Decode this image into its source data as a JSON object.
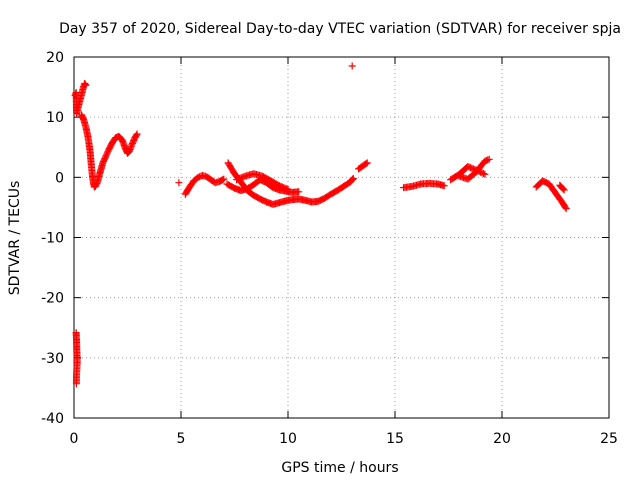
{
  "chart_data": {
    "type": "scatter",
    "title": "Day 357 of 2020, Sidereal Day-to-day VTEC variation (SDTVAR) for receiver spja",
    "xlabel": "GPS time / hours",
    "ylabel": "SDTVAR / TECUs",
    "xlim": [
      0,
      25
    ],
    "ylim": [
      -40,
      20
    ],
    "xticks": [
      0,
      5,
      10,
      15,
      20,
      25
    ],
    "yticks": [
      -40,
      -30,
      -20,
      -10,
      0,
      10,
      20
    ],
    "xtick_labels": [
      "0",
      "5",
      "10",
      "15",
      "20",
      "25"
    ],
    "ytick_labels": [
      "-40",
      "-30",
      "-20",
      "-10",
      "0",
      "10",
      "20"
    ],
    "grid": true,
    "marker": "+",
    "series": [
      {
        "name": "SDTVAR",
        "color": "#ff0000",
        "segments": [
          [
            [
              0.05,
              13.6
            ],
            [
              0.1,
              14.1
            ],
            [
              0.12,
              10.6
            ],
            [
              0.45,
              15.1
            ],
            [
              0.5,
              15.6
            ],
            [
              0.55,
              15.3
            ]
          ],
          [
            [
              0.1,
              -25.8
            ],
            [
              0.12,
              -27.2
            ],
            [
              0.13,
              -28.6
            ],
            [
              0.14,
              -29.6
            ],
            [
              0.15,
              -30.8
            ],
            [
              0.12,
              -32.8
            ],
            [
              0.11,
              -34.3
            ]
          ],
          [
            [
              0.35,
              10.4
            ],
            [
              0.45,
              9.6
            ],
            [
              0.55,
              8.4
            ],
            [
              0.65,
              6.8
            ],
            [
              0.75,
              4.4
            ],
            [
              0.8,
              2.4
            ],
            [
              0.85,
              0.6
            ],
            [
              0.9,
              -0.8
            ],
            [
              0.95,
              -1.6
            ],
            [
              1.0,
              -1.5
            ],
            [
              1.1,
              -0.8
            ],
            [
              1.2,
              0.6
            ],
            [
              1.35,
              2.4
            ],
            [
              1.5,
              3.6
            ],
            [
              1.65,
              4.8
            ],
            [
              1.8,
              5.8
            ],
            [
              1.95,
              6.6
            ],
            [
              2.1,
              6.8
            ],
            [
              2.25,
              6.2
            ],
            [
              2.4,
              4.8
            ],
            [
              2.5,
              4.0
            ],
            [
              2.6,
              4.4
            ],
            [
              2.7,
              5.4
            ],
            [
              2.85,
              6.6
            ],
            [
              2.95,
              7.2
            ]
          ],
          [
            [
              4.9,
              -0.9
            ]
          ],
          [
            [
              5.2,
              -2.8
            ],
            [
              5.4,
              -1.6
            ],
            [
              5.6,
              -0.6
            ],
            [
              5.8,
              0.0
            ],
            [
              6.0,
              0.3
            ],
            [
              6.2,
              0.1
            ],
            [
              6.4,
              -0.4
            ],
            [
              6.6,
              -0.9
            ],
            [
              6.8,
              -0.7
            ],
            [
              7.0,
              -0.3
            ]
          ],
          [
            [
              7.15,
              -1.1
            ],
            [
              7.5,
              -1.8
            ],
            [
              7.8,
              -2.2
            ],
            [
              8.1,
              -1.9
            ],
            [
              8.4,
              -1.2
            ],
            [
              8.7,
              -0.4
            ],
            [
              9.0,
              -0.9
            ],
            [
              9.3,
              -1.7
            ],
            [
              9.6,
              -2.1
            ],
            [
              9.9,
              -2.3
            ],
            [
              10.2,
              -2.5
            ],
            [
              10.5,
              -2.4
            ]
          ],
          [
            [
              7.2,
              2.4
            ],
            [
              7.5,
              0.6
            ],
            [
              7.8,
              -0.8
            ],
            [
              8.1,
              -2.2
            ],
            [
              8.4,
              -3.0
            ],
            [
              8.7,
              -3.6
            ],
            [
              9.0,
              -4.1
            ],
            [
              9.3,
              -4.5
            ],
            [
              9.6,
              -4.2
            ],
            [
              9.9,
              -3.9
            ],
            [
              10.2,
              -3.7
            ],
            [
              10.5,
              -3.6
            ],
            [
              10.8,
              -3.8
            ],
            [
              11.1,
              -4.1
            ],
            [
              11.4,
              -4.0
            ],
            [
              11.7,
              -3.5
            ],
            [
              12.0,
              -2.8
            ],
            [
              12.3,
              -2.2
            ],
            [
              12.6,
              -1.5
            ],
            [
              12.9,
              -0.8
            ],
            [
              13.05,
              -0.2
            ]
          ],
          [
            [
              7.6,
              -0.4
            ],
            [
              8.0,
              0.2
            ],
            [
              8.4,
              0.6
            ],
            [
              8.8,
              0.2
            ],
            [
              9.2,
              -0.6
            ],
            [
              9.6,
              -1.4
            ],
            [
              10.0,
              -2.0
            ]
          ],
          [
            [
              13.0,
              18.5
            ]
          ],
          [
            [
              13.3,
              1.4
            ],
            [
              13.5,
              1.9
            ],
            [
              13.7,
              2.4
            ]
          ],
          [
            [
              15.4,
              -1.7
            ],
            [
              15.8,
              -1.5
            ],
            [
              16.2,
              -1.1
            ],
            [
              16.6,
              -1.0
            ],
            [
              17.0,
              -1.1
            ],
            [
              17.3,
              -1.4
            ]
          ],
          [
            [
              17.6,
              -0.4
            ],
            [
              18.0,
              0.5
            ],
            [
              18.4,
              1.8
            ],
            [
              18.8,
              1.2
            ],
            [
              19.2,
              0.5
            ]
          ],
          [
            [
              18.0,
              0.2
            ],
            [
              18.4,
              -0.3
            ],
            [
              18.8,
              0.9
            ],
            [
              19.2,
              2.7
            ],
            [
              19.4,
              3.0
            ]
          ],
          [
            [
              21.6,
              -1.6
            ],
            [
              21.9,
              -0.6
            ],
            [
              22.2,
              -1.1
            ],
            [
              22.5,
              -2.6
            ],
            [
              22.8,
              -4.1
            ],
            [
              23.0,
              -5.2
            ]
          ],
          [
            [
              22.7,
              -1.3
            ],
            [
              22.9,
              -2.1
            ]
          ]
        ]
      }
    ]
  }
}
